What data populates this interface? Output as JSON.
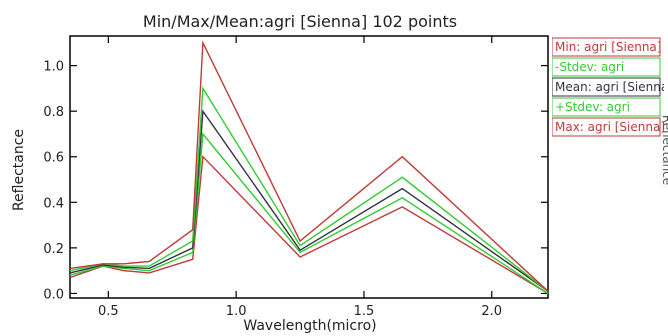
{
  "chart_data": {
    "type": "line",
    "title": "Min/Max/Mean:agri [Sienna] 102 points",
    "xlabel": "Wavelength(micro)",
    "ylabel": "Reflectance",
    "right_axis_label": "Reflectance",
    "xlim": [
      0.35,
      2.22
    ],
    "ylim": [
      -0.02,
      1.13
    ],
    "x_ticks": [
      0.5,
      1.0,
      1.5,
      2.0
    ],
    "x_tick_labels": [
      "0.5",
      "1.0",
      "1.5",
      "2.0"
    ],
    "y_ticks": [
      0.0,
      0.2,
      0.4,
      0.6,
      0.8,
      1.0
    ],
    "y_tick_labels": [
      "0.0",
      "0.2",
      "0.4",
      "0.6",
      "0.8",
      "1.0"
    ],
    "grid": false,
    "legend_position": "right",
    "x": [
      0.35,
      0.48,
      0.56,
      0.66,
      0.83,
      0.87,
      1.25,
      1.65,
      2.22
    ],
    "series": [
      {
        "name": "Min: agri [Sienna]",
        "color": "#c03a3a",
        "values": [
          0.07,
          0.12,
          0.1,
          0.09,
          0.15,
          0.6,
          0.16,
          0.38,
          0.0
        ]
      },
      {
        "name": "-Stdev: agri",
        "color": "#33cc33",
        "values": [
          0.08,
          0.12,
          0.11,
          0.1,
          0.18,
          0.7,
          0.18,
          0.42,
          0.0
        ]
      },
      {
        "name": "Mean: agri [Sienna]",
        "color": "#333344",
        "values": [
          0.09,
          0.125,
          0.115,
          0.11,
          0.2,
          0.8,
          0.19,
          0.46,
          0.01
        ]
      },
      {
        "name": "+Stdev: agri",
        "color": "#33cc33",
        "values": [
          0.1,
          0.13,
          0.12,
          0.12,
          0.23,
          0.9,
          0.21,
          0.51,
          0.01
        ]
      },
      {
        "name": "Max: agri [Sienna]",
        "color": "#c03a3a",
        "values": [
          0.11,
          0.13,
          0.13,
          0.14,
          0.28,
          1.1,
          0.23,
          0.6,
          0.01
        ]
      }
    ]
  }
}
